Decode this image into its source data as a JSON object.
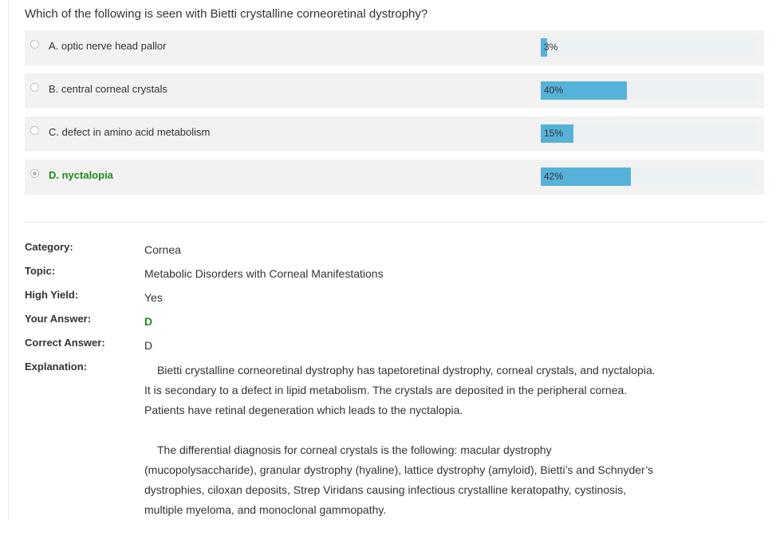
{
  "question": "Which of the following is seen with Bietti crystalline corneoretinal dystrophy?",
  "choices": [
    {
      "label": "A. optic nerve head pallor",
      "percent": 3,
      "percent_label": "3%",
      "selected": false,
      "correct": false
    },
    {
      "label": "B. central corneal crystals",
      "percent": 40,
      "percent_label": "40%",
      "selected": false,
      "correct": false
    },
    {
      "label": "C. defect in amino acid metabolism",
      "percent": 15,
      "percent_label": "15%",
      "selected": false,
      "correct": false
    },
    {
      "label": "D. nyctalopia",
      "percent": 42,
      "percent_label": "42%",
      "selected": true,
      "correct": true
    }
  ],
  "details": {
    "category_label": "Category:",
    "category_value": "Cornea",
    "topic_label": "Topic:",
    "topic_value": "Metabolic Disorders with Corneal Manifestations",
    "high_yield_label": "High Yield:",
    "high_yield_value": "Yes",
    "your_answer_label": "Your Answer:",
    "your_answer_value": "D",
    "correct_answer_label": "Correct Answer:",
    "correct_answer_value": "D",
    "explanation_label": "Explanation:",
    "explanation_p1": "Bietti crystalline corneoretinal dystrophy has tapetoretinal dystrophy, corneal crystals, and nyctalopia. It is secondary to a defect in lipid metabolism. The crystals are deposited in the peripheral cornea. Patients have retinal degeneration which leads to the nyctalopia.",
    "explanation_p2": "The differential diagnosis for corneal crystals is the following: macular dystrophy (mucopolysaccharide), granular dystrophy (hyaline), lattice dystrophy (amyloid), Bietti’s and Schnyder’s dystrophies, ciloxan deposits, Strep Viridans causing infectious crystalline keratopathy, cystinosis, multiple myeloma, and monoclonal gammopathy."
  },
  "colors": {
    "bar_fill": "#56b2d9",
    "bar_track": "#ebf1f3",
    "choice_background": "#f2f2f2",
    "correct_text": "#1e8a1e"
  }
}
